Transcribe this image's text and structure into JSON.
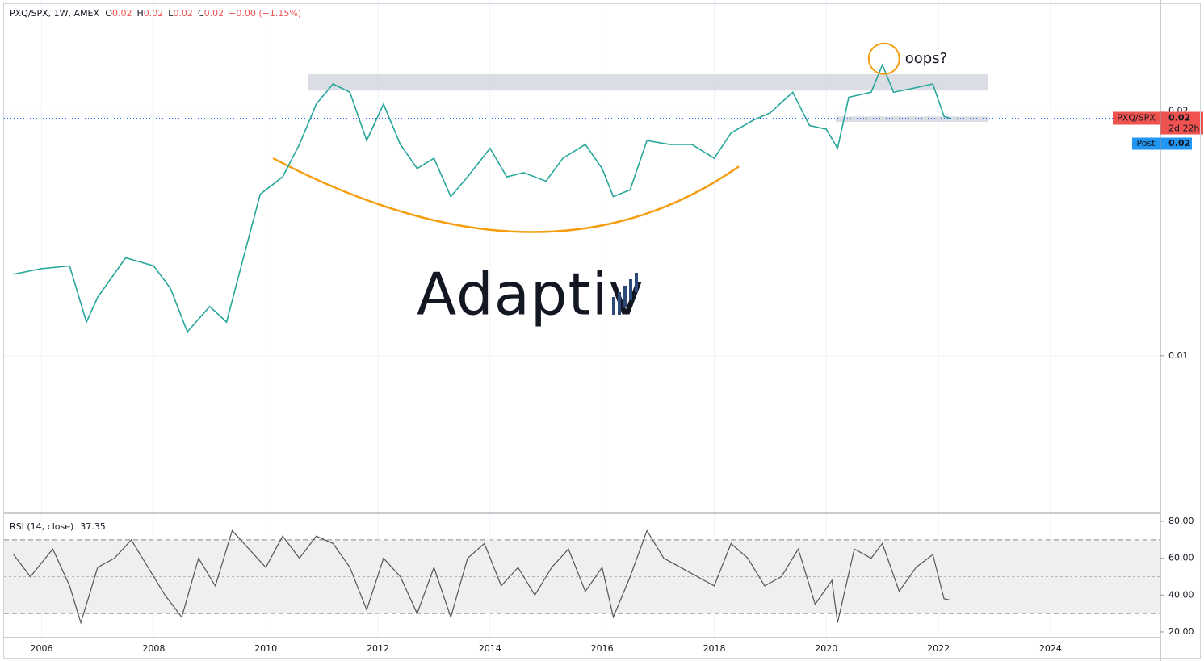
{
  "chart_data": [
    {
      "type": "line",
      "title": "PXQ/SPX, 1W, AMEX",
      "ohlc": [
        {
          "label": "O",
          "value": "0.02"
        },
        {
          "label": "H",
          "value": "0.02"
        },
        {
          "label": "L",
          "value": "0.02"
        },
        {
          "label": "C",
          "value": "0.02"
        }
      ],
      "change": "−0.00 (−1.15%)",
      "log_scale": true,
      "grid": true,
      "xlim": [
        2005.33,
        2025.96
      ],
      "ylim": [
        0.0064,
        0.0274
      ],
      "yticks": [
        0.01,
        0.02
      ],
      "x": [
        2005.5,
        2006.0,
        2006.5,
        2006.8,
        2007.0,
        2007.5,
        2008.0,
        2008.3,
        2008.6,
        2009.0,
        2009.3,
        2009.6,
        2009.9,
        2010.3,
        2010.6,
        2010.9,
        2011.2,
        2011.5,
        2011.8,
        2012.1,
        2012.4,
        2012.7,
        2013.0,
        2013.3,
        2013.6,
        2014.0,
        2014.3,
        2014.6,
        2015.0,
        2015.3,
        2015.7,
        2016.0,
        2016.2,
        2016.5,
        2016.8,
        2017.2,
        2017.6,
        2018.0,
        2018.3,
        2018.7,
        2019.0,
        2019.4,
        2019.7,
        2020.0,
        2020.2,
        2020.4,
        2020.8,
        2021.0,
        2021.2,
        2021.5,
        2021.9,
        2022.1,
        2022.2
      ],
      "values": [
        0.0126,
        0.0128,
        0.0129,
        0.011,
        0.0118,
        0.0132,
        0.0129,
        0.0121,
        0.0107,
        0.0115,
        0.011,
        0.0132,
        0.0158,
        0.0166,
        0.0182,
        0.0204,
        0.0216,
        0.0211,
        0.0184,
        0.0204,
        0.0182,
        0.017,
        0.0175,
        0.0157,
        0.0166,
        0.018,
        0.0166,
        0.0168,
        0.0164,
        0.0175,
        0.0182,
        0.017,
        0.0157,
        0.016,
        0.0184,
        0.0182,
        0.0182,
        0.0175,
        0.0188,
        0.0195,
        0.0199,
        0.0211,
        0.0192,
        0.019,
        0.018,
        0.0208,
        0.0211,
        0.0228,
        0.0211,
        0.0213,
        0.0216,
        0.0197,
        0.0196
      ],
      "color": "#26a69a",
      "symbol_tag": "PXQ/SPX",
      "last_price_label": "0.02",
      "countdown": "2d 22h",
      "post_label": "Post",
      "post_price_label": "0.02",
      "zones": [
        {
          "x": [
            2010.76,
            2022.88
          ],
          "y": [
            0.0212,
            0.0222
          ],
          "color": "#d1d4dc"
        },
        {
          "x": [
            2020.17,
            2022.88
          ],
          "y": [
            0.0194,
            0.0197
          ],
          "color": "#d1d4dc"
        }
      ],
      "cup": {
        "x": [
          2010.13,
          2014.64,
          2018.44
        ],
        "values": [
          0.0175,
          0.0142,
          0.0171
        ],
        "color": "#f59d0e"
      },
      "circle": {
        "x": 2021.03,
        "value": 0.0232,
        "color": "#f59d0e"
      },
      "annotation": "oops?",
      "watermark": "Adaptiv"
    },
    {
      "type": "line",
      "title": "RSI (14, close)",
      "xlim": [
        2005.33,
        2025.96
      ],
      "ylim": [
        16.9,
        84.4
      ],
      "xticks": [
        2006,
        2008,
        2010,
        2012,
        2014,
        2016,
        2018,
        2020,
        2022,
        2024
      ],
      "yticks": [
        {
          "value": 20,
          "label": "20.00"
        },
        {
          "value": 40,
          "label": "40.00"
        },
        {
          "value": 60,
          "label": "60.00"
        },
        {
          "value": 80,
          "label": "80.00"
        }
      ],
      "levels": [
        30,
        50,
        70
      ],
      "x": [
        2005.5,
        2005.8,
        2006.2,
        2006.5,
        2006.7,
        2007.0,
        2007.3,
        2007.6,
        2007.9,
        2008.2,
        2008.5,
        2008.8,
        2009.1,
        2009.4,
        2009.7,
        2010.0,
        2010.3,
        2010.6,
        2010.9,
        2011.2,
        2011.5,
        2011.8,
        2012.1,
        2012.4,
        2012.7,
        2013.0,
        2013.3,
        2013.6,
        2013.9,
        2014.2,
        2014.5,
        2014.8,
        2015.1,
        2015.4,
        2015.7,
        2016.0,
        2016.2,
        2016.5,
        2016.8,
        2017.1,
        2017.4,
        2017.7,
        2018.0,
        2018.3,
        2018.6,
        2018.9,
        2019.2,
        2019.5,
        2019.8,
        2020.1,
        2020.2,
        2020.5,
        2020.8,
        2021.0,
        2021.3,
        2021.6,
        2021.9,
        2022.1,
        2022.2
      ],
      "values": [
        62,
        50,
        65,
        45,
        25,
        55,
        60,
        70,
        55,
        40,
        28,
        60,
        45,
        75,
        65,
        55,
        72,
        60,
        72,
        68,
        55,
        32,
        60,
        50,
        30,
        55,
        28,
        60,
        68,
        45,
        55,
        40,
        55,
        65,
        42,
        55,
        28,
        50,
        75,
        60,
        55,
        50,
        45,
        68,
        60,
        45,
        50,
        65,
        35,
        48,
        25,
        65,
        60,
        68,
        42,
        55,
        62,
        38,
        37.35
      ],
      "color": "#555555"
    }
  ]
}
